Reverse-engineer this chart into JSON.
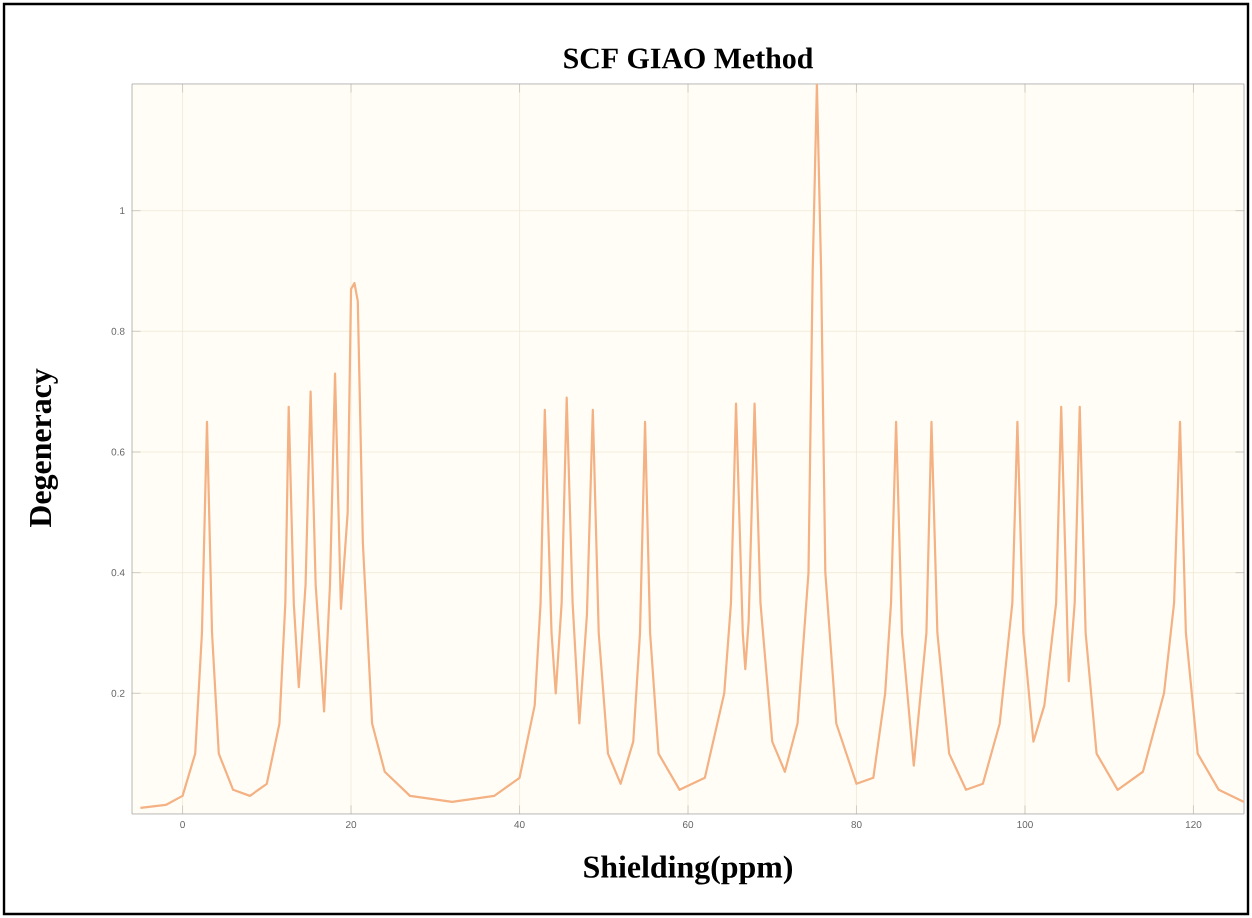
{
  "chart_data": {
    "type": "line",
    "title": "SCF GIAO Method",
    "xlabel": "Shielding(ppm)",
    "ylabel": "Degeneracy",
    "xlim": [
      -6,
      126
    ],
    "ylim": [
      0,
      1.21
    ],
    "xticks": [
      0,
      20,
      40,
      60,
      80,
      100,
      120
    ],
    "yticks": [
      0.2,
      0.4,
      0.6,
      0.8,
      1
    ],
    "grid": true,
    "marker": "none",
    "line_style": "solid",
    "series": [
      {
        "color": "#f4b183",
        "x": [
          -5,
          -2,
          0,
          1.5,
          2.3,
          2.9,
          3.5,
          4.3,
          6,
          8,
          10,
          11.5,
          12.2,
          12.6,
          13.2,
          13.8,
          14.6,
          15.2,
          15.8,
          16.8,
          17.5,
          18.1,
          18.8,
          19.6,
          20.0,
          20.4,
          20.8,
          21.4,
          22.5,
          24,
          27,
          32,
          37,
          40,
          41.8,
          42.5,
          43.0,
          43.8,
          44.3,
          45.0,
          45.6,
          46.3,
          47.1,
          48.0,
          48.7,
          49.4,
          50.5,
          52,
          53.5,
          54.3,
          54.9,
          55.5,
          56.5,
          59,
          62,
          64.3,
          65.1,
          65.7,
          66.5,
          66.8,
          67.2,
          67.9,
          68.6,
          70,
          71.5,
          73,
          74.3,
          74.8,
          75.3,
          75.8,
          76.3,
          77.6,
          80,
          82,
          83.4,
          84.1,
          84.7,
          85.4,
          86.8,
          88.3,
          88.9,
          89.6,
          91,
          93,
          95,
          97,
          98.5,
          99.1,
          99.8,
          101,
          102.3,
          103.7,
          104.3,
          105.2,
          105.9,
          106.5,
          107.2,
          108.5,
          111,
          114,
          116.5,
          117.7,
          118.4,
          119.1,
          120.5,
          123,
          126
        ],
        "values": [
          0.01,
          0.015,
          0.03,
          0.1,
          0.3,
          0.65,
          0.3,
          0.1,
          0.04,
          0.03,
          0.05,
          0.15,
          0.35,
          0.675,
          0.35,
          0.21,
          0.38,
          0.7,
          0.38,
          0.17,
          0.38,
          0.73,
          0.34,
          0.5,
          0.87,
          0.88,
          0.85,
          0.45,
          0.15,
          0.07,
          0.03,
          0.02,
          0.03,
          0.06,
          0.18,
          0.35,
          0.67,
          0.3,
          0.2,
          0.35,
          0.69,
          0.35,
          0.15,
          0.33,
          0.67,
          0.3,
          0.1,
          0.05,
          0.12,
          0.3,
          0.65,
          0.3,
          0.1,
          0.04,
          0.06,
          0.2,
          0.35,
          0.68,
          0.3,
          0.24,
          0.32,
          0.68,
          0.35,
          0.12,
          0.07,
          0.15,
          0.4,
          0.9,
          1.21,
          0.9,
          0.4,
          0.15,
          0.05,
          0.06,
          0.2,
          0.35,
          0.65,
          0.3,
          0.08,
          0.3,
          0.65,
          0.3,
          0.1,
          0.04,
          0.05,
          0.15,
          0.35,
          0.65,
          0.3,
          0.12,
          0.18,
          0.35,
          0.675,
          0.22,
          0.35,
          0.675,
          0.3,
          0.1,
          0.04,
          0.07,
          0.2,
          0.35,
          0.65,
          0.3,
          0.1,
          0.04,
          0.02
        ]
      }
    ]
  }
}
